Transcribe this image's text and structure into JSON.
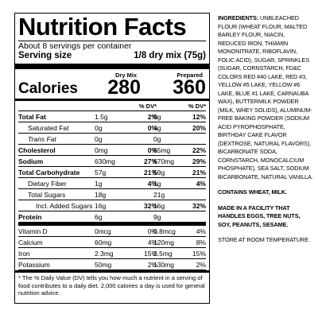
{
  "label": {
    "title": "Nutrition Facts",
    "servings": "About 8 servings per container",
    "serving_size_label": "Serving size",
    "serving_size_value": "1/8 dry mix (75g)",
    "col1_header": "Dry Mix",
    "col2_header": "Prepared",
    "calories_label": "Calories",
    "calories_dry": "280",
    "calories_prepared": "360",
    "dv_header": "% DV*",
    "rows": [
      {
        "label": "Total Fat",
        "amt1": "1.5g",
        "pct1": "2%",
        "amt2": "9g",
        "pct2": "12%"
      },
      {
        "label": "Saturated Fat",
        "amt1": "0g",
        "pct1": "0%",
        "amt2": "4g",
        "pct2": "20%"
      },
      {
        "label": "Trans Fat",
        "amt1": "0g",
        "pct1": "",
        "amt2": "0g",
        "pct2": ""
      },
      {
        "label": "Cholesterol",
        "amt1": "0mg",
        "pct1": "0%",
        "amt2": "65mg",
        "pct2": "22%"
      },
      {
        "label": "Sodium",
        "amt1": "630mg",
        "pct1": "27%",
        "amt2": "670mg",
        "pct2": "29%"
      },
      {
        "label": "Total Carbohydrate",
        "amt1": "57g",
        "pct1": "21%",
        "amt2": "59g",
        "pct2": "21%"
      },
      {
        "label": "Dietary Fiber",
        "amt1": "1g",
        "pct1": "4%",
        "amt2": "1g",
        "pct2": "4%"
      },
      {
        "label": "Total Sugars",
        "amt1": "18g",
        "pct1": "",
        "amt2": "21g",
        "pct2": ""
      },
      {
        "label": "Incl. Added Sugars",
        "amt1": "16g",
        "pct1": "32%",
        "amt2": "16g",
        "pct2": "32%"
      },
      {
        "label": "Protein",
        "amt1": "6g",
        "pct1": "",
        "amt2": "9g",
        "pct2": ""
      },
      {
        "label": "Vitamin D",
        "amt1": "0mcg",
        "pct1": "0%",
        "amt2": "0.8mcg",
        "pct2": "4%"
      },
      {
        "label": "Calcium",
        "amt1": "60mg",
        "pct1": "4%",
        "amt2": "120mg",
        "pct2": "8%"
      },
      {
        "label": "Iron",
        "amt1": "2.3mg",
        "pct1": "15%",
        "amt2": "2.5mg",
        "pct2": "15%"
      },
      {
        "label": "Potassium",
        "amt1": "50mg",
        "pct1": "2%",
        "amt2": "130mg",
        "pct2": "2%"
      }
    ],
    "footnote": "* The % Daily Value (DV) tells you how much a nutrient in a serving of food contributes to a daily diet. 2,000 calories a day is used for general nutrition advice."
  },
  "ingredients": {
    "heading": "INGREDIENTS:",
    "text": "UNBLEACHED FLOUR (WHEAT FLOUR, MALTED BARLEY FLOUR, NIACIN, REDUCED IRON, THIAMIN MONONITRATE, RIBOFLAVIN, FOLIC ACID), SUGAR, SPRINKLES (SUGAR, CORNSTARCH, FD&C COLORS RED #40 LAKE, RED #3, YELLOW #5 LAKE, YELLOW #6 LAKE, BLUE #1 LAKE, CARNAUBA WAX), BUTTERMILK POWDER (MILK, WHEY SOLIDS), ALUMINUM-FREE BAKING POWDER (SODIUM ACID PYROPHOSPHATE, BIRTHDAY CAKE FLAVOR (DEXTROSE, NATURAL FLAVORS), BICARBONATE SODA, CORNSTARCH, MONOCALCIUM PHOSPHATE), SEA SALT, SODIUM BICARBONATE, NATURAL VANILLA.",
    "contains": "CONTAINS WHEAT, MILK.",
    "facility": "MADE IN A FACILITY THAT HANDLES EGGS, TREE NUTS, SOY, PEANUTS, SESAME.",
    "storage": "STORE AT ROOM TEMPERATURE."
  }
}
